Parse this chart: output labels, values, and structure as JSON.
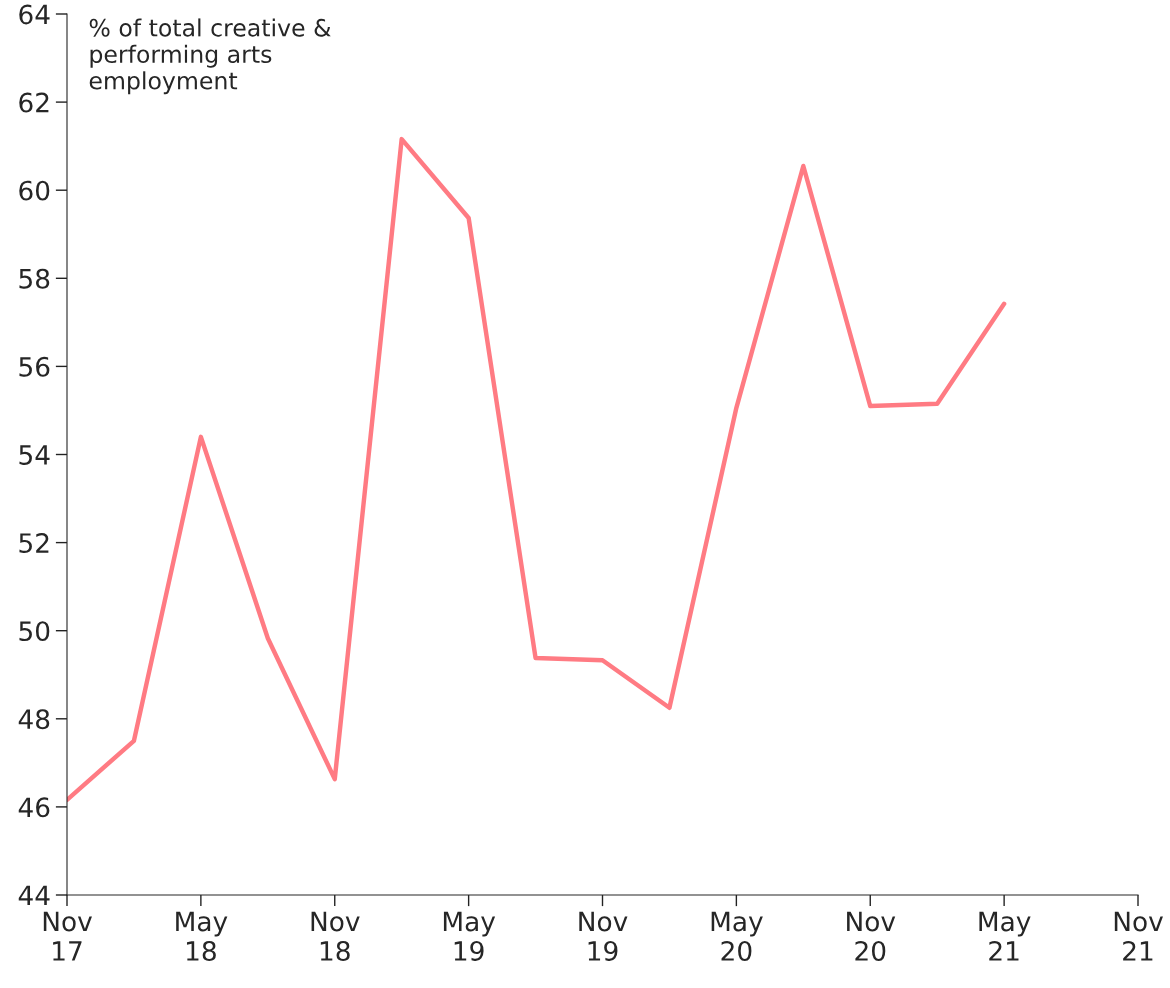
{
  "chart_data": {
    "type": "line",
    "ylabel": "% of total creative &\nperforming arts\nemployment",
    "x": [
      "2017-11",
      "2018-02",
      "2018-05",
      "2018-08",
      "2018-11",
      "2019-02",
      "2019-05",
      "2019-08",
      "2019-11",
      "2020-02",
      "2020-05",
      "2020-08",
      "2020-11",
      "2021-02",
      "2021-05"
    ],
    "series": [
      {
        "color": "#ff7b83",
        "values": [
          46.16,
          47.5,
          54.4,
          49.83,
          46.63,
          61.16,
          59.37,
          49.38,
          49.33,
          48.25,
          55.06,
          60.55,
          55.1,
          55.15,
          57.42
        ]
      }
    ],
    "xlim": [
      "2017-11",
      "2021-11"
    ],
    "xticks": [
      {
        "value": "2017-11",
        "label": "Nov\n17"
      },
      {
        "value": "2018-05",
        "label": "May\n18"
      },
      {
        "value": "2018-11",
        "label": "Nov\n18"
      },
      {
        "value": "2019-05",
        "label": "May\n19"
      },
      {
        "value": "2019-11",
        "label": "Nov\n19"
      },
      {
        "value": "2020-05",
        "label": "May\n20"
      },
      {
        "value": "2020-11",
        "label": "Nov\n20"
      },
      {
        "value": "2021-05",
        "label": "May\n21"
      },
      {
        "value": "2021-11",
        "label": "Nov\n21"
      }
    ],
    "ylim": [
      44,
      64
    ],
    "yticks": [
      44,
      46,
      48,
      50,
      52,
      54,
      56,
      58,
      60,
      62,
      64
    ],
    "grid": false,
    "marker": "none",
    "line_style": "solid"
  }
}
